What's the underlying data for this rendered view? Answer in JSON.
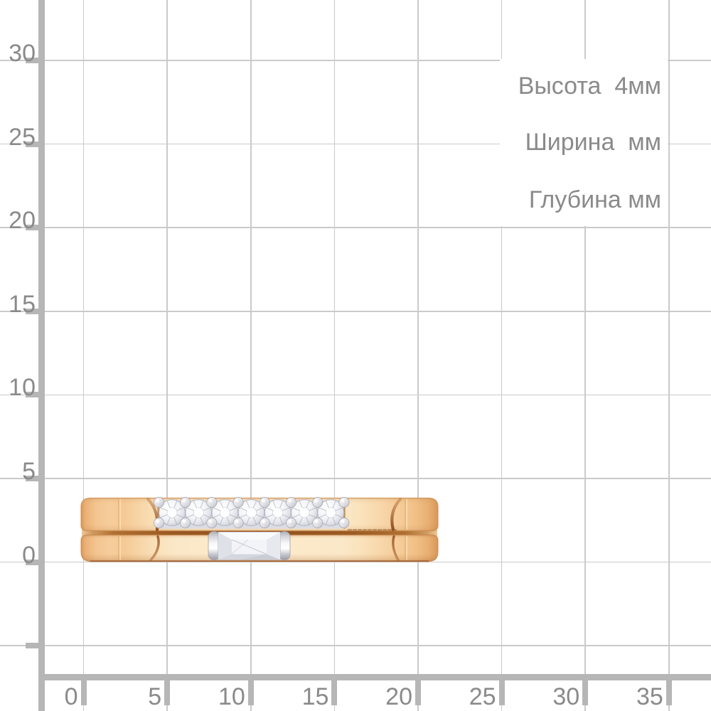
{
  "scale": {
    "y_axis_labels": [
      "30",
      "25",
      "20",
      "15",
      "10",
      "5",
      "0"
    ],
    "x_axis_labels": [
      "0",
      "5",
      "10",
      "15",
      "20",
      "25",
      "30",
      "35"
    ],
    "unit_mm_per_cell": 5
  },
  "annotations": {
    "height": "Высота  4мм",
    "width": "Ширина  мм",
    "depth": "Глубина мм"
  },
  "ring": {
    "round_stone_count": 7,
    "baguette_stone_count": 1,
    "metal_color": "#f9ddb2",
    "metal_edge_color": "#d89757",
    "groove_color": "#8f5120",
    "stone_color": "#eff1f6",
    "setting_color": "#d9d9e0"
  },
  "style": {
    "background": "#ffffff",
    "grid_line_color": "#cacaca",
    "axis_color": "#b6b6b6",
    "label_color": "#8a8a8a"
  }
}
